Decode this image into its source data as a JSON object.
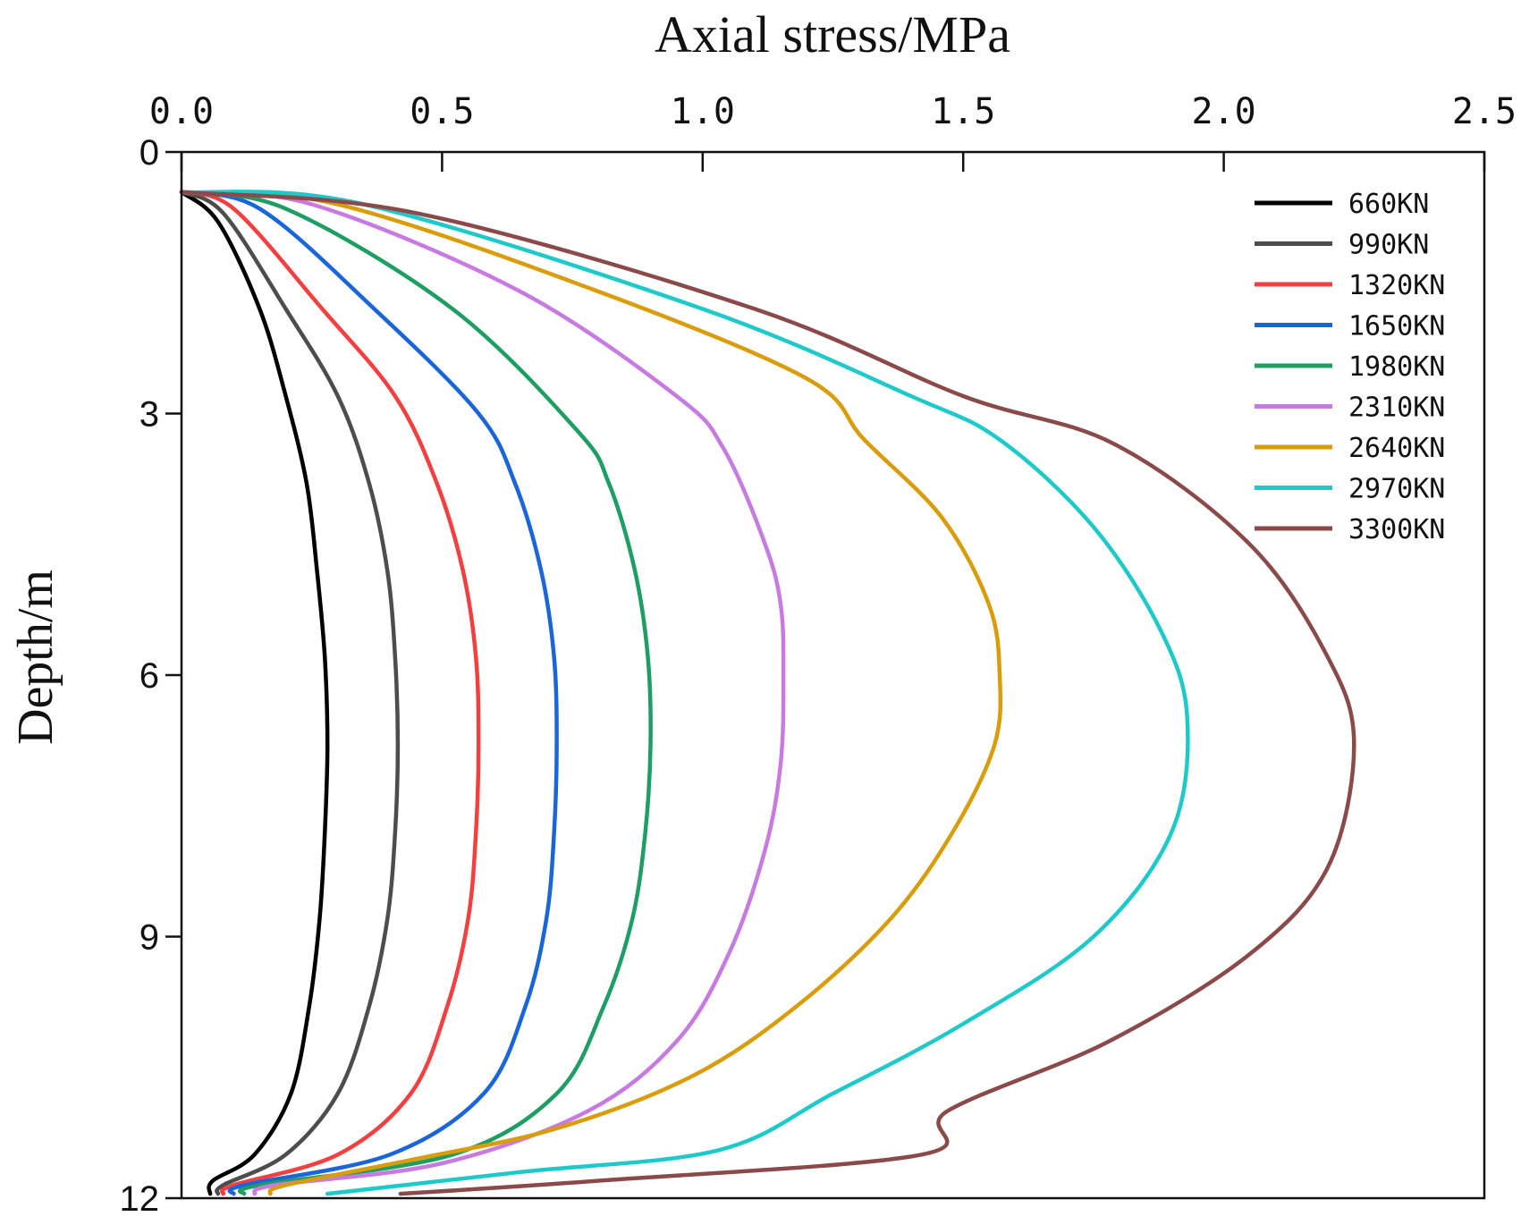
{
  "chart_data": {
    "type": "line",
    "title": "Axial stress/MPa",
    "xlabel": "Axial stress/MPa",
    "ylabel": "Depth/m",
    "xlim": [
      0,
      2.5
    ],
    "ylim": [
      0,
      12
    ],
    "x_ticks": [
      "0.0",
      "0.5",
      "1.0",
      "1.5",
      "2.0",
      "2.5"
    ],
    "y_ticks": [
      "0",
      "3",
      "6",
      "9",
      "12"
    ],
    "x_tick_values": [
      0,
      0.5,
      1.0,
      1.5,
      2.0,
      2.5
    ],
    "y_tick_values": [
      0,
      3,
      6,
      9,
      12
    ],
    "legend_position": "top-right",
    "series": [
      {
        "name": "660KN",
        "color": "#000000",
        "points": [
          [
            0.0,
            0.46
          ],
          [
            0.07,
            0.8
          ],
          [
            0.15,
            1.8
          ],
          [
            0.2,
            2.8
          ],
          [
            0.24,
            3.8
          ],
          [
            0.26,
            4.8
          ],
          [
            0.275,
            5.8
          ],
          [
            0.28,
            6.8
          ],
          [
            0.275,
            7.8
          ],
          [
            0.265,
            8.8
          ],
          [
            0.245,
            9.8
          ],
          [
            0.21,
            10.8
          ],
          [
            0.14,
            11.5
          ],
          [
            0.06,
            11.8
          ],
          [
            0.055,
            11.95
          ]
        ]
      },
      {
        "name": "990KN",
        "color": "#4d4d4d",
        "points": [
          [
            0.0,
            0.46
          ],
          [
            0.08,
            0.7
          ],
          [
            0.2,
            1.8
          ],
          [
            0.3,
            2.8
          ],
          [
            0.36,
            3.8
          ],
          [
            0.395,
            4.8
          ],
          [
            0.41,
            5.8
          ],
          [
            0.415,
            6.8
          ],
          [
            0.41,
            7.8
          ],
          [
            0.395,
            8.8
          ],
          [
            0.36,
            9.8
          ],
          [
            0.3,
            10.8
          ],
          [
            0.2,
            11.5
          ],
          [
            0.08,
            11.85
          ],
          [
            0.07,
            11.95
          ]
        ]
      },
      {
        "name": "1320KN",
        "color": "#f24040",
        "points": [
          [
            0.0,
            0.46
          ],
          [
            0.1,
            0.65
          ],
          [
            0.27,
            1.8
          ],
          [
            0.41,
            2.8
          ],
          [
            0.49,
            3.8
          ],
          [
            0.54,
            4.8
          ],
          [
            0.565,
            5.8
          ],
          [
            0.57,
            6.8
          ],
          [
            0.565,
            7.8
          ],
          [
            0.55,
            8.8
          ],
          [
            0.51,
            9.8
          ],
          [
            0.44,
            10.8
          ],
          [
            0.3,
            11.5
          ],
          [
            0.1,
            11.85
          ],
          [
            0.08,
            11.95
          ]
        ]
      },
      {
        "name": "1650KN",
        "color": "#1a66d9",
        "points": [
          [
            0.0,
            0.46
          ],
          [
            0.15,
            0.65
          ],
          [
            0.37,
            1.8
          ],
          [
            0.57,
            3.0
          ],
          [
            0.64,
            3.8
          ],
          [
            0.69,
            4.8
          ],
          [
            0.715,
            5.8
          ],
          [
            0.72,
            6.8
          ],
          [
            0.715,
            7.8
          ],
          [
            0.7,
            8.8
          ],
          [
            0.66,
            9.8
          ],
          [
            0.58,
            10.8
          ],
          [
            0.4,
            11.5
          ],
          [
            0.12,
            11.85
          ],
          [
            0.1,
            11.95
          ]
        ]
      },
      {
        "name": "1980KN",
        "color": "#1f9e63",
        "points": [
          [
            0.0,
            0.46
          ],
          [
            0.2,
            0.65
          ],
          [
            0.52,
            1.8
          ],
          [
            0.76,
            3.2
          ],
          [
            0.82,
            3.8
          ],
          [
            0.87,
            4.8
          ],
          [
            0.895,
            5.8
          ],
          [
            0.9,
            6.8
          ],
          [
            0.89,
            7.8
          ],
          [
            0.865,
            8.8
          ],
          [
            0.81,
            9.8
          ],
          [
            0.72,
            10.8
          ],
          [
            0.52,
            11.5
          ],
          [
            0.15,
            11.85
          ],
          [
            0.12,
            11.95
          ]
        ]
      },
      {
        "name": "2310KN",
        "color": "#c77be0",
        "points": [
          [
            0.0,
            0.46
          ],
          [
            0.25,
            0.6
          ],
          [
            0.65,
            1.6
          ],
          [
            0.95,
            2.8
          ],
          [
            1.04,
            3.4
          ],
          [
            1.12,
            4.5
          ],
          [
            1.15,
            5.2
          ],
          [
            1.155,
            6.0
          ],
          [
            1.15,
            7.0
          ],
          [
            1.12,
            8.0
          ],
          [
            1.05,
            9.2
          ],
          [
            0.95,
            10.2
          ],
          [
            0.78,
            11.0
          ],
          [
            0.5,
            11.6
          ],
          [
            0.18,
            11.85
          ],
          [
            0.14,
            11.95
          ]
        ]
      },
      {
        "name": "2640KN",
        "color": "#d99c0a",
        "points": [
          [
            0.0,
            0.46
          ],
          [
            0.3,
            0.6
          ],
          [
            0.8,
            1.6
          ],
          [
            1.2,
            2.6
          ],
          [
            1.31,
            3.3
          ],
          [
            1.46,
            4.2
          ],
          [
            1.55,
            5.2
          ],
          [
            1.57,
            6.0
          ],
          [
            1.56,
            6.8
          ],
          [
            1.48,
            7.8
          ],
          [
            1.36,
            8.8
          ],
          [
            1.18,
            9.8
          ],
          [
            0.98,
            10.6
          ],
          [
            0.72,
            11.2
          ],
          [
            0.45,
            11.55
          ],
          [
            0.2,
            11.85
          ],
          [
            0.17,
            11.95
          ]
        ]
      },
      {
        "name": "2970KN",
        "color": "#1fc9c9",
        "points": [
          [
            0.0,
            0.46
          ],
          [
            0.35,
            0.6
          ],
          [
            1.0,
            1.8
          ],
          [
            1.4,
            2.8
          ],
          [
            1.57,
            3.3
          ],
          [
            1.75,
            4.3
          ],
          [
            1.88,
            5.5
          ],
          [
            1.93,
            6.5
          ],
          [
            1.9,
            7.8
          ],
          [
            1.75,
            9.0
          ],
          [
            1.5,
            10.0
          ],
          [
            1.25,
            10.8
          ],
          [
            1.03,
            11.45
          ],
          [
            0.65,
            11.7
          ],
          [
            0.28,
            11.95
          ]
        ]
      },
      {
        "name": "3300KN",
        "color": "#8b4a4a",
        "points": [
          [
            0.0,
            0.46
          ],
          [
            0.45,
            0.7
          ],
          [
            1.1,
            1.8
          ],
          [
            1.5,
            2.8
          ],
          [
            1.79,
            3.35
          ],
          [
            2.05,
            4.5
          ],
          [
            2.2,
            5.8
          ],
          [
            2.25,
            6.8
          ],
          [
            2.2,
            8.2
          ],
          [
            2.05,
            9.2
          ],
          [
            1.78,
            10.2
          ],
          [
            1.47,
            11.0
          ],
          [
            1.42,
            11.5
          ],
          [
            0.8,
            11.8
          ],
          [
            0.42,
            11.95
          ]
        ]
      }
    ]
  }
}
